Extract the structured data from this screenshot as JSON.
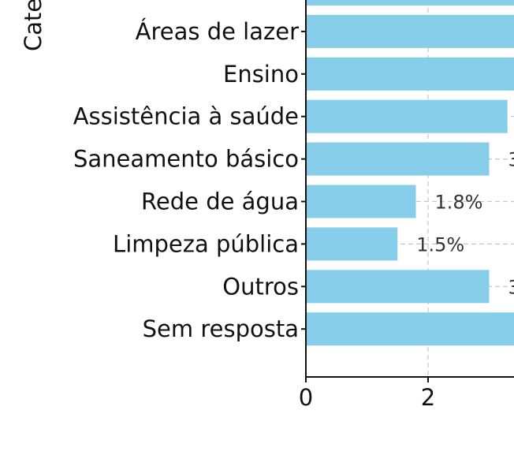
{
  "chart_data": {
    "type": "bar",
    "orientation": "horizontal",
    "ylabel": "Cate",
    "categories": [
      "",
      "Áreas de lazer",
      "Ensino",
      "Assistência à saúde",
      "Saneamento básico",
      "Rede de água",
      "Limpeza pública",
      "Outros",
      "Sem resposta"
    ],
    "values": [
      3.5,
      3.5,
      3.5,
      3.3,
      3.0,
      1.8,
      1.5,
      3.0,
      3.5
    ],
    "value_labels": [
      "",
      "",
      "",
      "",
      "3",
      "1.8%",
      "1.5%",
      "3",
      ""
    ],
    "x_ticks": [
      "0",
      "2"
    ],
    "x_tick_values": [
      0,
      2
    ],
    "xlim": [
      0,
      3.4
    ],
    "grid": true,
    "bar_color": "#87CEEB"
  }
}
